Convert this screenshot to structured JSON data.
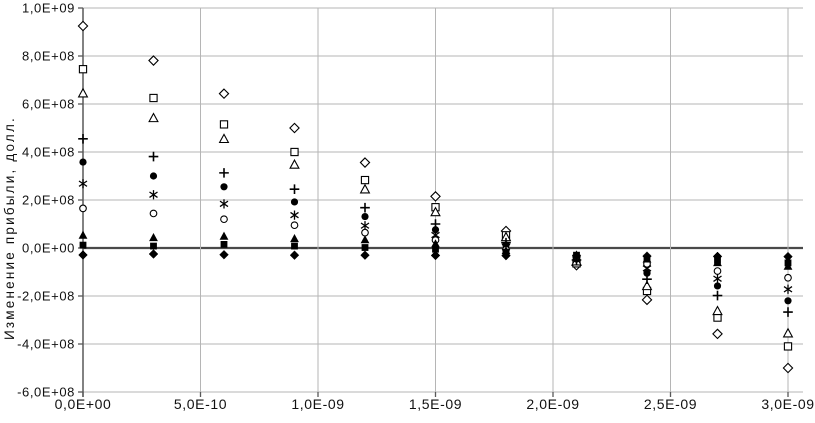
{
  "chart_data": {
    "type": "scatter",
    "title": "",
    "xlabel": "",
    "ylabel": "Изменение прибыли, долл.",
    "grid": true,
    "legend": "none",
    "marker_color": "#000000",
    "gridline_color": "#b5b5b5",
    "axis_color": "#595959",
    "zero_line_color": "#4a4a4a",
    "xlim": [
      0,
      3e-09
    ],
    "ylim": [
      -600000000.0,
      1000000000.0
    ],
    "x_ticks": [
      0,
      5e-10,
      1e-09,
      1.5e-09,
      2e-09,
      2.5e-09,
      3e-09
    ],
    "x_tick_labels": [
      "0,0E+00",
      "5,0E-10",
      "1,0E-09",
      "1,5E-09",
      "2,0E-09",
      "2,5E-09",
      "3,0E-09"
    ],
    "y_ticks": [
      1000000000.0,
      800000000.0,
      600000000.0,
      400000000.0,
      200000000.0,
      0,
      -200000000.0,
      -400000000.0,
      -600000000.0
    ],
    "y_tick_labels": [
      "1,0E+09",
      "8,0E+08",
      "6,0E+08",
      "4,0E+08",
      "2,0E+08",
      "0,0E+00",
      "-2,0E+08",
      "-4,0E+08",
      "-6,0E+08"
    ],
    "x": [
      0,
      3e-10,
      6e-10,
      9e-10,
      1.2e-09,
      1.5e-09,
      1.8e-09,
      2.1e-09,
      2.4e-09,
      2.7e-09,
      3e-09
    ],
    "series": [
      {
        "name": "series-open-diamond",
        "marker": "open-diamond",
        "values": [
          925000000,
          781000000,
          643000000,
          500000000,
          356000000,
          215000000,
          71000000,
          -72000000,
          -216000000,
          -358000000,
          -500000000
        ]
      },
      {
        "name": "series-open-square",
        "marker": "open-square",
        "values": [
          745000000,
          625000000,
          515000000,
          400000000,
          283000000,
          170000000,
          53000000,
          -64000000,
          -179000000,
          -290000000,
          -410000000
        ]
      },
      {
        "name": "series-open-triangle",
        "marker": "open-triangle",
        "values": [
          645000000,
          542000000,
          455000000,
          348000000,
          245000000,
          150000000,
          46000000,
          -55000000,
          -158000000,
          -262000000,
          -355000000
        ]
      },
      {
        "name": "series-plus",
        "marker": "plus",
        "values": [
          455000000,
          381000000,
          313000000,
          245000000,
          168000000,
          100000000,
          22000000,
          -50000000,
          -130000000,
          -198000000,
          -267000000
        ]
      },
      {
        "name": "series-filled-circle",
        "marker": "filled-circle",
        "values": [
          358000000,
          300000000,
          255000000,
          192000000,
          131000000,
          76000000,
          12000000,
          -46000000,
          -105000000,
          -158000000,
          -220000000
        ]
      },
      {
        "name": "series-asterisk",
        "marker": "asterisk",
        "values": [
          268000000,
          222000000,
          184000000,
          137000000,
          93000000,
          54000000,
          5000000,
          -40000000,
          -85000000,
          -128000000,
          -172000000
        ]
      },
      {
        "name": "series-open-circle",
        "marker": "open-circle",
        "values": [
          165000000,
          144000000,
          120000000,
          95000000,
          64000000,
          33000000,
          -7000000,
          -36000000,
          -66000000,
          -96000000,
          -124000000
        ]
      },
      {
        "name": "series-filled-triangle",
        "marker": "filled-triangle",
        "values": [
          54000000,
          44000000,
          50000000,
          40000000,
          35000000,
          18000000,
          -10000000,
          -28000000,
          -45000000,
          -60000000,
          -75000000
        ]
      },
      {
        "name": "series-filled-square",
        "marker": "filled-square",
        "values": [
          12000000,
          8000000,
          15000000,
          8000000,
          2000000,
          -5000000,
          -18000000,
          -30000000,
          -42000000,
          -52000000,
          -62000000
        ]
      },
      {
        "name": "series-filled-diamond",
        "marker": "filled-diamond",
        "values": [
          -29000000,
          -25000000,
          -28000000,
          -30000000,
          -30000000,
          -31000000,
          -32000000,
          -33000000,
          -34000000,
          -35000000,
          -36000000
        ]
      }
    ]
  }
}
